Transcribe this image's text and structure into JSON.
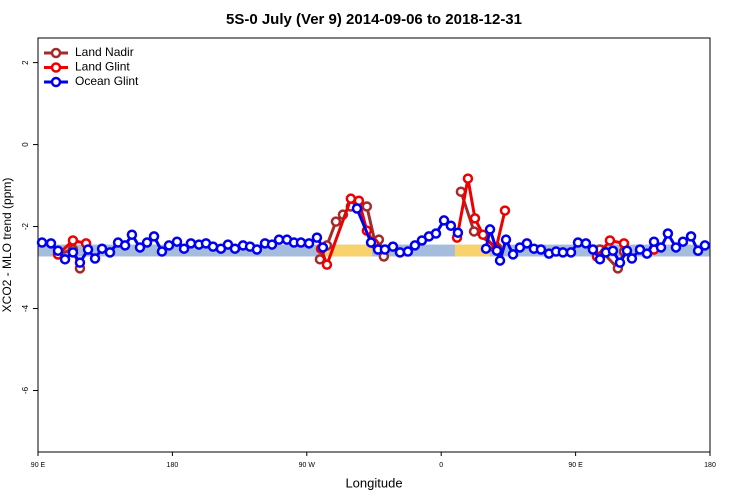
{
  "chart_data": {
    "type": "line",
    "title": "5S-0 July (Ver 9)   2014-09-06 to 2018-12-31",
    "x_label": "Longitude",
    "y_label": "XCO2 - MLO trend (ppm)",
    "xlim": [
      90,
      540
    ],
    "ylim": [
      -7.5,
      2.6
    ],
    "xticks": [
      {
        "value": 90,
        "label": "90 E"
      },
      180,
      {
        "value": 270,
        "label": "90 W"
      },
      {
        "value": 360,
        "label": "0"
      },
      {
        "value": 450,
        "label": "90 E"
      },
      {
        "value": 540,
        "label": "180"
      }
    ],
    "yticks": [
      -6,
      -4,
      -2,
      0,
      2
    ],
    "legend": "top-left",
    "reference_band": {
      "ylim": [
        -2.73,
        -2.44
      ],
      "color": "#a6bcdc",
      "highlight_x": [
        [
          282.2,
          313.7
        ],
        [
          369.2,
          392.7
        ]
      ],
      "highlight_color": "#f8d36c"
    },
    "series": [
      {
        "name": "Land Nadir",
        "color": "#a52a2a",
        "x": [
          103.4,
          113.4,
          118.1,
          null,
          278.8,
          283.5,
          289.5,
          294.2,
          299.5,
          304.9,
          310.2,
          315.6,
          318.3,
          321.6,
          null,
          373.2,
          382.0,
          397.3,
          null,
          466.3,
          478.3,
          482.4
        ],
        "values": [
          -2.68,
          -2.56,
          -3.02,
          null,
          -2.8,
          -2.46,
          -1.88,
          -1.71,
          -1.51,
          -1.49,
          -1.51,
          -2.37,
          -2.32,
          -2.73,
          null,
          -1.15,
          -2.12,
          -2.51,
          null,
          -2.56,
          -3.02,
          -2.61
        ]
      },
      {
        "name": "Land Glint",
        "color": "#ee0000",
        "x": [
          103.4,
          113.4,
          122.2,
          null,
          279.5,
          283.5,
          299.5,
          304.9,
          310.2,
          314.9,
          null,
          370.6,
          377.9,
          382.6,
          388.0,
          396.7,
          402.7,
          null,
          464.3,
          473.0,
          482.4,
          null,
          502.5
        ],
        "values": [
          -2.68,
          -2.34,
          -2.41,
          null,
          -2.54,
          -2.93,
          -1.32,
          -1.37,
          -2.1,
          -2.41,
          null,
          -2.27,
          -0.83,
          -1.8,
          -2.2,
          -2.54,
          -1.61,
          null,
          -2.73,
          -2.34,
          -2.41,
          null,
          -2.56
        ]
      },
      {
        "name": "Ocean Glint",
        "color": "#0000ee",
        "x": [
          92.7,
          98.7,
          103.4,
          108.1,
          113.4,
          118.1,
          123.5,
          128.2,
          132.9,
          138.2,
          143.6,
          148.3,
          152.9,
          158.3,
          163.0,
          167.7,
          173.0,
          177.7,
          183.1,
          187.8,
          192.4,
          197.8,
          202.5,
          207.2,
          212.5,
          217.2,
          221.9,
          227.3,
          232.0,
          236.6,
          242.0,
          246.7,
          251.4,
          256.7,
          261.4,
          266.1,
          271.5,
          276.8,
          280.8,
          null,
          303.6,
          313.0,
          317.7,
          322.3,
          327.7,
          332.4,
          337.7,
          342.4,
          347.1,
          351.8,
          356.5,
          361.9,
          366.5,
          371.2,
          null,
          390.0,
          392.7,
          397.3,
          399.4,
          403.4,
          408.1,
          412.7,
          417.4,
          422.1,
          426.8,
          432.2,
          436.9,
          441.5,
          446.9,
          451.6,
          456.9,
          461.6,
          466.3,
          470.3,
          475.0,
          479.7,
          484.4,
          487.7,
          493.1,
          497.8,
          502.5,
          507.2,
          511.8,
          517.2,
          521.9,
          527.3,
          532.0,
          536.6
        ],
        "values": [
          -2.39,
          -2.41,
          -2.59,
          -2.8,
          -2.63,
          -2.88,
          -2.56,
          -2.78,
          -2.54,
          -2.63,
          -2.39,
          -2.46,
          -2.2,
          -2.51,
          -2.39,
          -2.24,
          -2.61,
          -2.46,
          -2.37,
          -2.54,
          -2.41,
          -2.44,
          -2.41,
          -2.49,
          -2.54,
          -2.44,
          -2.54,
          -2.46,
          -2.49,
          -2.56,
          -2.41,
          -2.44,
          -2.32,
          -2.32,
          -2.39,
          -2.39,
          -2.41,
          -2.27,
          -2.51,
          null,
          -1.56,
          -2.39,
          -2.56,
          -2.56,
          -2.49,
          -2.63,
          -2.61,
          -2.46,
          -2.34,
          -2.24,
          -2.17,
          -1.85,
          -1.98,
          -2.15,
          null,
          -2.54,
          -2.07,
          -2.59,
          -2.83,
          -2.32,
          -2.68,
          -2.51,
          -2.41,
          -2.54,
          -2.56,
          -2.66,
          -2.61,
          -2.63,
          -2.63,
          -2.39,
          -2.41,
          -2.56,
          -2.8,
          -2.63,
          -2.59,
          -2.88,
          -2.59,
          -2.78,
          -2.56,
          -2.66,
          -2.37,
          -2.51,
          -2.17,
          -2.51,
          -2.37,
          -2.24,
          -2.59,
          -2.46
        ]
      }
    ]
  }
}
